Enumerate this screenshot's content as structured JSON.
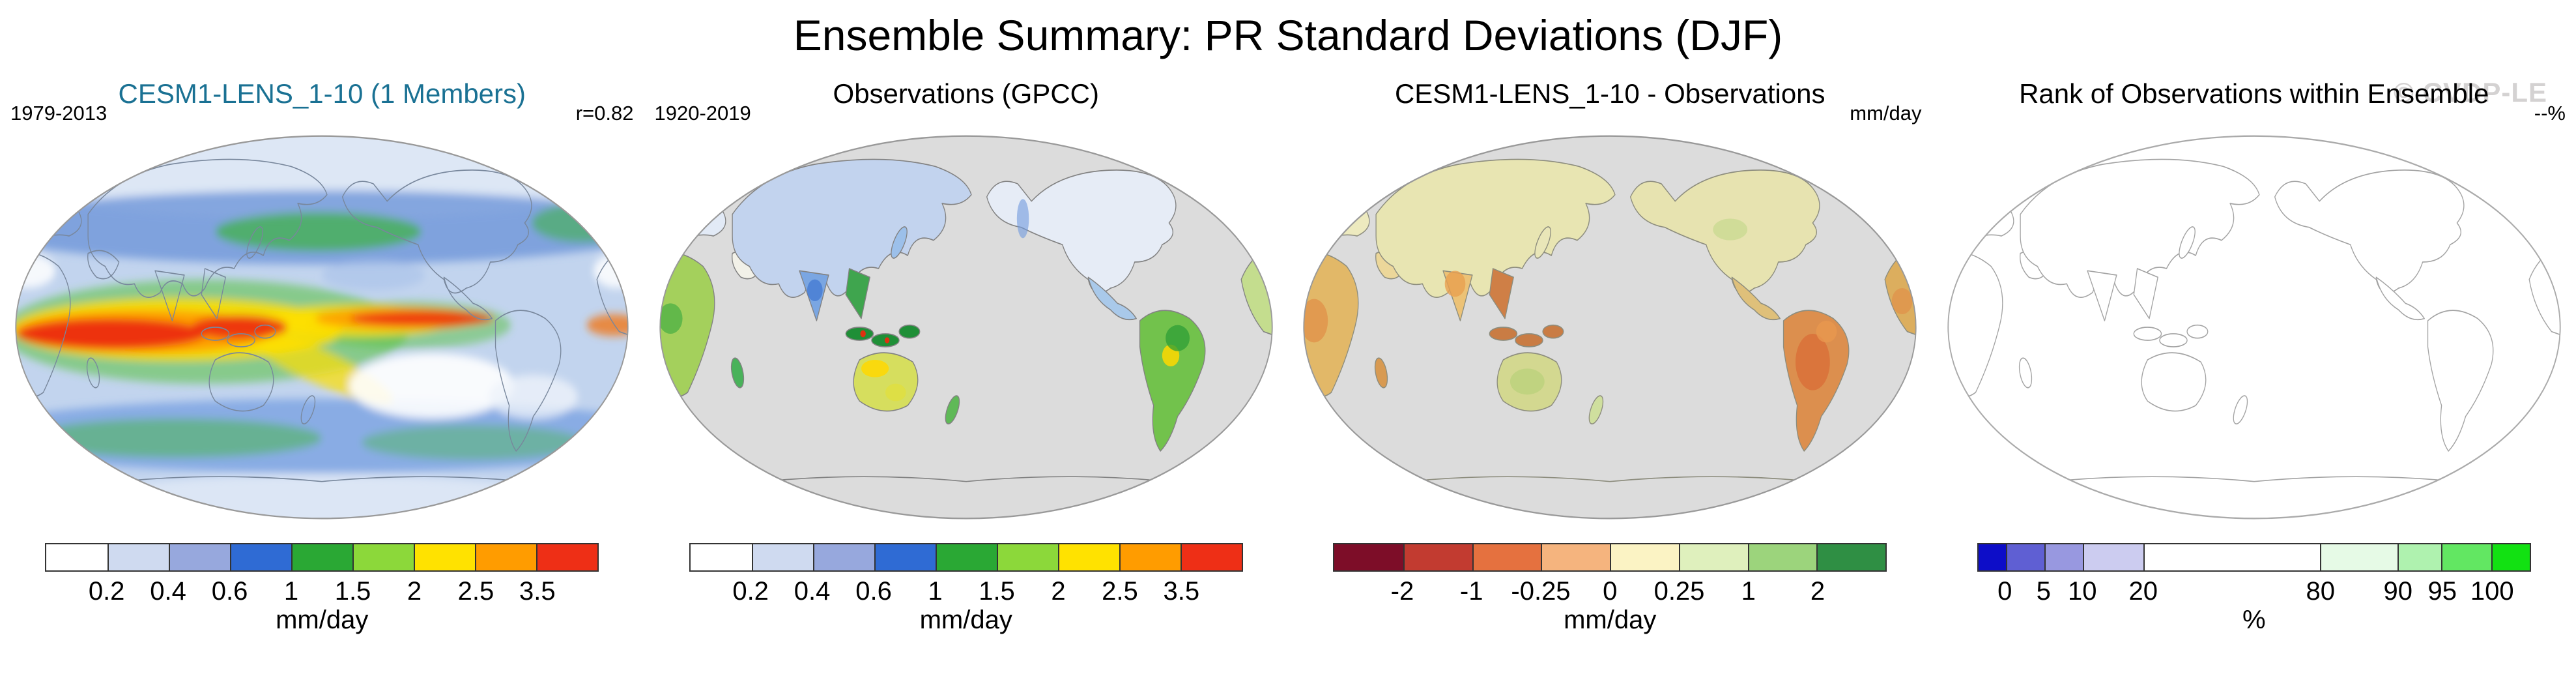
{
  "page": {
    "title": "Ensemble Summary: PR Standard Deviations (DJF)",
    "watermark": "© CVDP-LE"
  },
  "chart_data": [
    {
      "panel": "model",
      "type": "heatmap",
      "title": "CESM1-LENS_1-10 (1 Members)",
      "title_color": "#1a7193",
      "title_style": "color:#1a7193",
      "period": "1979-2013",
      "stat": "r=0.82",
      "colorbar": {
        "units": "mm/day",
        "levels": [
          0.2,
          0.4,
          0.6,
          1,
          1.5,
          2,
          2.5,
          3.5
        ],
        "tick_labels": [
          "0.2",
          "0.4",
          "0.6",
          "1",
          "1.5",
          "2",
          "2.5",
          "3.5"
        ],
        "tick_pos_pct": [
          11.11,
          22.22,
          33.33,
          44.44,
          55.56,
          66.67,
          77.78,
          88.89
        ],
        "cells": [
          {
            "color": "#ffffff",
            "w": 11.11
          },
          {
            "color": "#cfdaf0",
            "w": 11.11
          },
          {
            "color": "#97a8dd",
            "w": 11.11
          },
          {
            "color": "#2f6bd4",
            "w": 11.11
          },
          {
            "color": "#2aa834",
            "w": 11.11
          },
          {
            "color": "#8cd83a",
            "w": 11.11
          },
          {
            "color": "#ffe200",
            "w": 11.11
          },
          {
            "color": "#ff9c00",
            "w": 11.11
          },
          {
            "color": "#ee2f16",
            "w": 11.12
          }
        ]
      }
    },
    {
      "panel": "observations",
      "type": "heatmap",
      "title": "Observations (GPCC)",
      "period": "1920-2019",
      "colorbar": {
        "units": "mm/day",
        "levels": [
          0.2,
          0.4,
          0.6,
          1,
          1.5,
          2,
          2.5,
          3.5
        ],
        "tick_labels": [
          "0.2",
          "0.4",
          "0.6",
          "1",
          "1.5",
          "2",
          "2.5",
          "3.5"
        ],
        "tick_pos_pct": [
          11.11,
          22.22,
          33.33,
          44.44,
          55.56,
          66.67,
          77.78,
          88.89
        ],
        "cells": [
          {
            "color": "#ffffff",
            "w": 11.11
          },
          {
            "color": "#cfdaf0",
            "w": 11.11
          },
          {
            "color": "#97a8dd",
            "w": 11.11
          },
          {
            "color": "#2f6bd4",
            "w": 11.11
          },
          {
            "color": "#2aa834",
            "w": 11.11
          },
          {
            "color": "#8cd83a",
            "w": 11.11
          },
          {
            "color": "#ffe200",
            "w": 11.11
          },
          {
            "color": "#ff9c00",
            "w": 11.11
          },
          {
            "color": "#ee2f16",
            "w": 11.12
          }
        ]
      }
    },
    {
      "panel": "difference",
      "type": "heatmap",
      "title": "CESM1-LENS_1-10 - Observations",
      "stat": "mm/day",
      "colorbar": {
        "units": "mm/day",
        "levels": [
          -2,
          -1,
          -0.25,
          0,
          0.25,
          1,
          2
        ],
        "tick_labels": [
          "-2",
          "-1",
          "-0.25",
          "0",
          "0.25",
          "1",
          "2"
        ],
        "tick_pos_pct": [
          12.5,
          25,
          37.5,
          50,
          62.5,
          75,
          87.5
        ],
        "cells": [
          {
            "color": "#7d0d28",
            "w": 12.5
          },
          {
            "color": "#c23b30",
            "w": 12.5
          },
          {
            "color": "#e5713f",
            "w": 12.5
          },
          {
            "color": "#f5b47e",
            "w": 12.5
          },
          {
            "color": "#fbf3c4",
            "w": 12.5
          },
          {
            "color": "#dff0bd",
            "w": 12.5
          },
          {
            "color": "#9cd47c",
            "w": 12.5
          },
          {
            "color": "#2f8f44",
            "w": 12.5
          }
        ]
      }
    },
    {
      "panel": "rank",
      "type": "heatmap",
      "title": "Rank of Observations within Ensemble",
      "stat": "--%",
      "colorbar": {
        "units": "%",
        "levels": [
          0,
          5,
          10,
          20,
          80,
          90,
          95,
          100
        ],
        "tick_labels": [
          "0",
          "5",
          "10",
          "20",
          "80",
          "90",
          "95",
          "100"
        ],
        "tick_pos_pct": [
          5,
          12,
          19,
          30,
          62,
          76,
          84,
          93
        ],
        "cells": [
          {
            "color": "#0d0dc8",
            "w": 5
          },
          {
            "color": "#5f5fd3",
            "w": 7
          },
          {
            "color": "#9898e0",
            "w": 7
          },
          {
            "color": "#ccccf0",
            "w": 11
          },
          {
            "color": "#ffffff",
            "w": 32
          },
          {
            "color": "#e6fae6",
            "w": 14
          },
          {
            "color": "#aff2af",
            "w": 8
          },
          {
            "color": "#62e762",
            "w": 9
          },
          {
            "color": "#12e112",
            "w": 7
          }
        ]
      }
    }
  ]
}
